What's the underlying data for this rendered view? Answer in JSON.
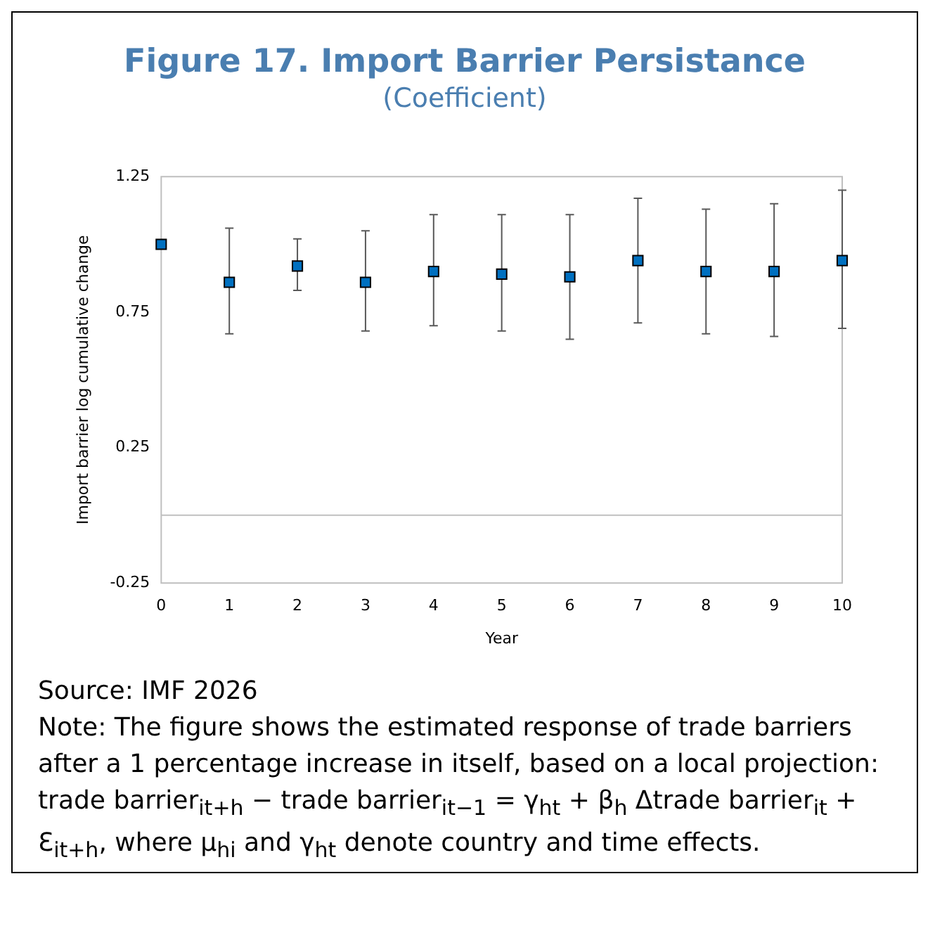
{
  "chart_data": {
    "type": "scatter",
    "title": "Figure 17. Import Barrier Persistance",
    "subtitle": "(Coefficient)",
    "xlabel": "Year",
    "ylabel": "Import barrier log cumulative change",
    "categories": [
      "0",
      "1",
      "2",
      "3",
      "4",
      "5",
      "6",
      "7",
      "8",
      "9",
      "10"
    ],
    "series": [
      {
        "color": "#0070c0",
        "values": [
          1.0,
          0.86,
          0.92,
          0.86,
          0.9,
          0.89,
          0.88,
          0.94,
          0.9,
          0.9,
          0.94
        ],
        "errors": [
          null,
          [
            0.67,
            1.06
          ],
          [
            0.83,
            1.02
          ],
          [
            0.68,
            1.05
          ],
          [
            0.7,
            1.11
          ],
          [
            0.68,
            1.11
          ],
          [
            0.65,
            1.11
          ],
          [
            0.71,
            1.17
          ],
          [
            0.67,
            1.13
          ],
          [
            0.66,
            1.15
          ],
          [
            0.69,
            1.2
          ]
        ]
      }
    ],
    "ylim": [
      -0.25,
      1.25
    ],
    "yticks": [
      -0.25,
      0.25,
      0.75,
      1.25
    ],
    "grid": false,
    "legend": false,
    "marker": "square",
    "ref_lines": [
      {
        "axis": "y",
        "value": 0,
        "color": "#bfbfbf"
      }
    ],
    "annotations": [
      "Source: IMF 2026",
      "Note: The figure shows the estimated response of trade barriers after a 1 percentage increase in itself, based on a local projection: trade barrier$_{it+h}$ − trade barrier$_{it−1}$ = γ$_{ht}$ + β$_{h}$ Δtrade barrier$_{it}$ + Ɛ$_{it+h}$, where μ$_{hi}$ and γ$_{ht}$ denote country and time effects."
    ]
  }
}
